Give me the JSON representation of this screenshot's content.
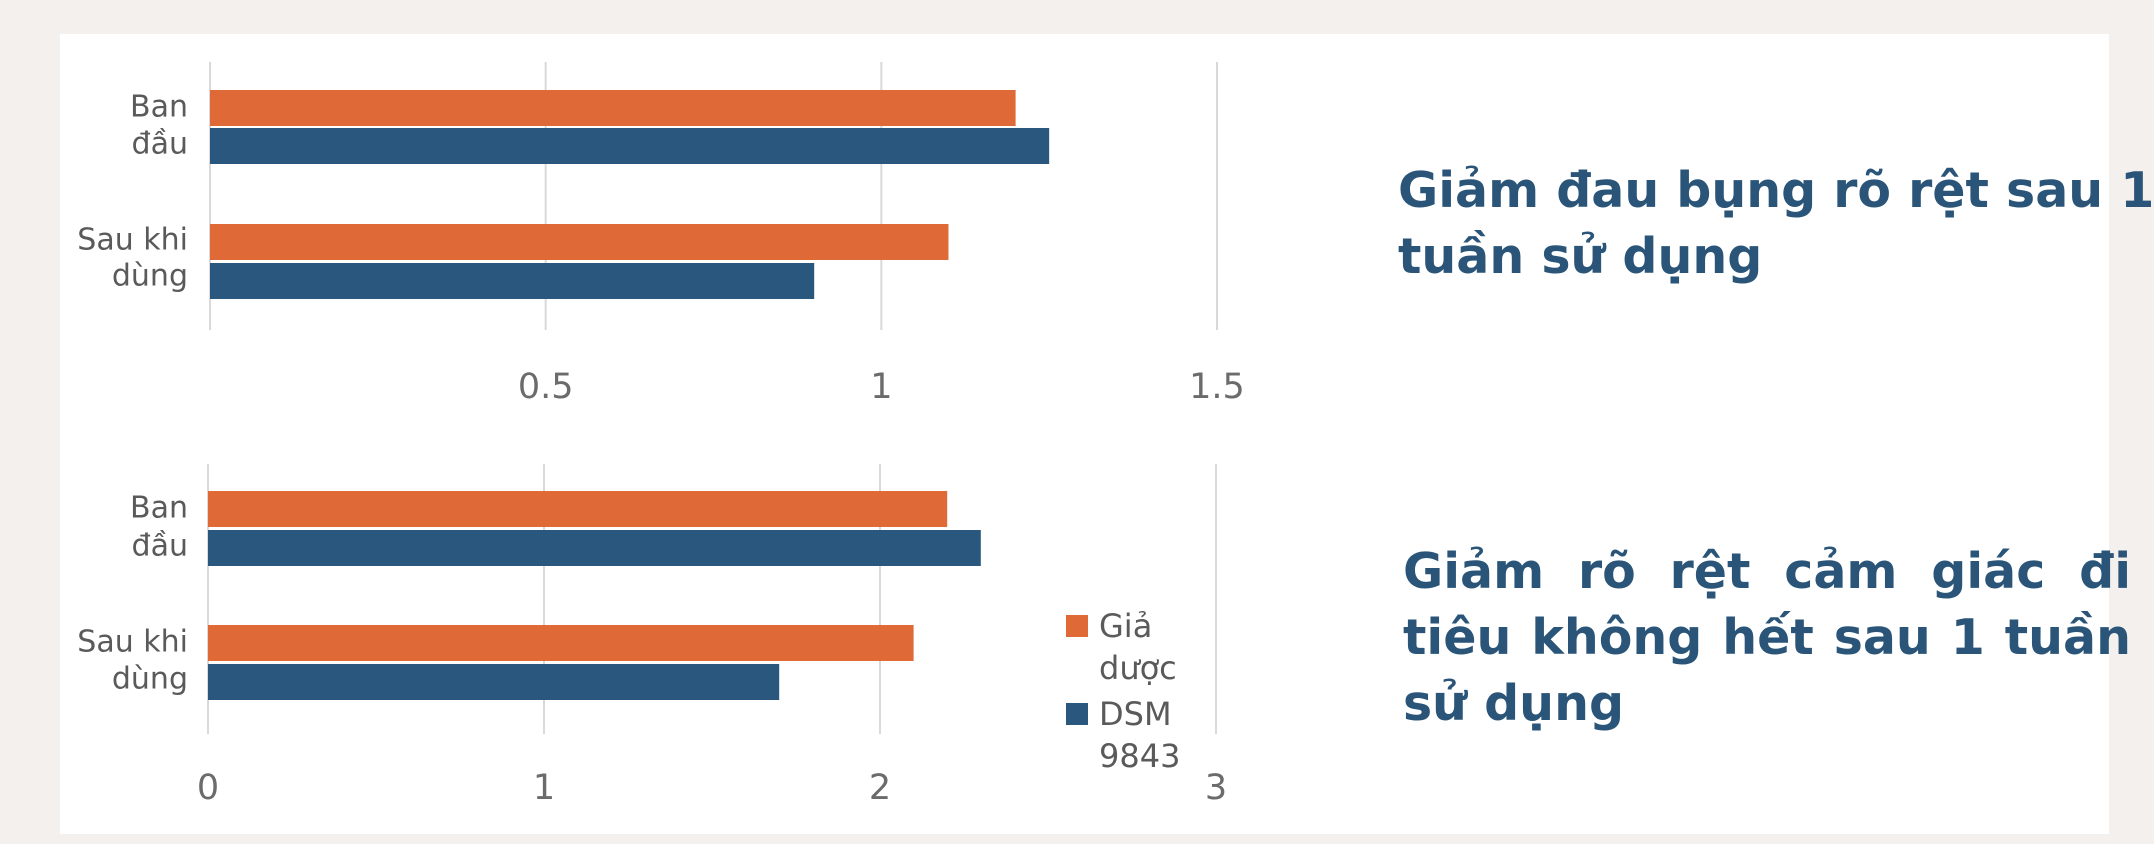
{
  "chart_data": [
    {
      "type": "bar",
      "orientation": "horizontal",
      "title": "Giảm đau bụng rõ rệt sau 1 tuần sử dụng",
      "categories": [
        "Ban đầu",
        "Sau khi dùng"
      ],
      "category_lines": [
        [
          "Ban",
          "đầu"
        ],
        [
          "Sau khi",
          "dùng"
        ]
      ],
      "series": [
        {
          "name": "Giả dược",
          "color": "#e06a37",
          "values": [
            1.2,
            1.1
          ]
        },
        {
          "name": "DSM 9843",
          "color": "#29577e",
          "values": [
            1.25,
            0.9
          ]
        }
      ],
      "xlim": [
        0,
        1.5
      ],
      "xticks": [
        0.5,
        1,
        1.5
      ],
      "xtick_labels": [
        "0.5",
        "1",
        "1.5"
      ],
      "grid": true
    },
    {
      "type": "bar",
      "orientation": "horizontal",
      "title": "Giảm rõ rệt cảm giác đi tiêu không hết sau 1 tuần sử dụng",
      "categories": [
        "Ban đầu",
        "Sau khi dùng"
      ],
      "category_lines": [
        [
          "Ban",
          "đầu"
        ],
        [
          "Sau khi",
          "dùng"
        ]
      ],
      "series": [
        {
          "name": "Giả dược",
          "color": "#e06a37",
          "values": [
            2.2,
            2.1
          ]
        },
        {
          "name": "DSM 9843",
          "color": "#29577e",
          "values": [
            2.3,
            1.7
          ]
        }
      ],
      "xlim": [
        0,
        3
      ],
      "xticks": [
        0,
        1,
        2,
        3
      ],
      "xtick_labels": [
        "0",
        "1",
        "2",
        "3"
      ],
      "grid": true,
      "legend": {
        "position": "right",
        "entries": [
          {
            "lines": [
              "Giả",
              "dược"
            ],
            "color": "#e06a37"
          },
          {
            "lines": [
              "DSM",
              "9843"
            ],
            "color": "#29577e"
          }
        ]
      }
    }
  ]
}
